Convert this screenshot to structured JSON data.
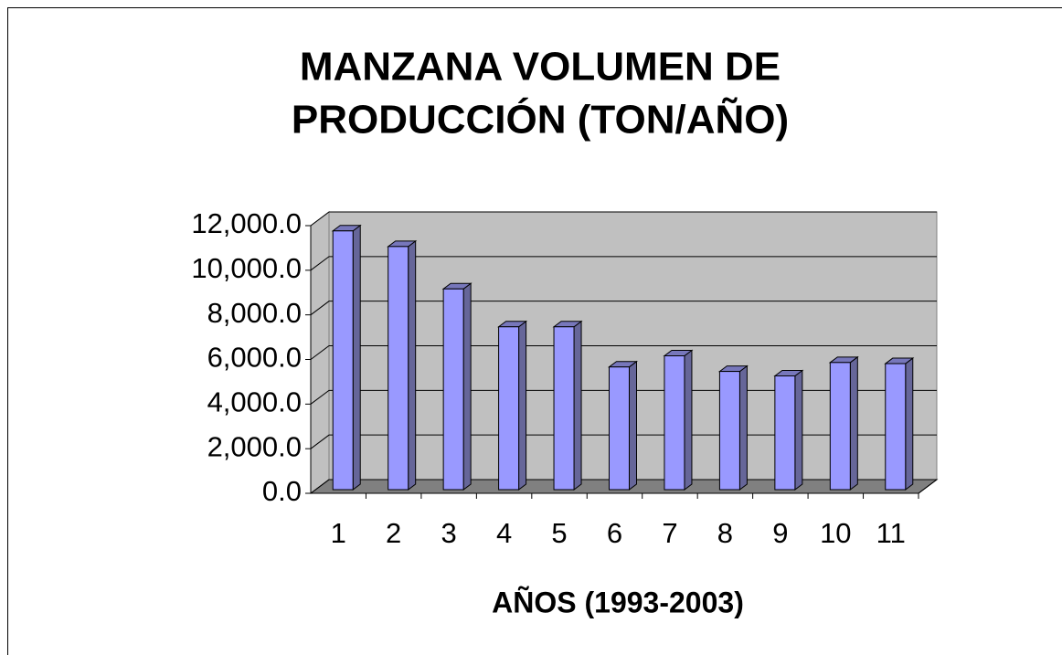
{
  "chart_data": {
    "type": "bar3d",
    "title": [
      "MANZANA VOLUMEN DE",
      "PRODUCCIÓN (TON/AÑO)"
    ],
    "x_label": "AÑOS (1993-2003)",
    "categories": [
      "1",
      "2",
      "3",
      "4",
      "5",
      "6",
      "7",
      "8",
      "9",
      "10",
      "11"
    ],
    "values": [
      11600,
      10900,
      9000,
      7300,
      7300,
      5500,
      6000,
      5300,
      5100,
      5700,
      5650
    ],
    "color": "#9999ff",
    "ylim": [
      0,
      12000
    ],
    "yticks": [
      {
        "value": 0,
        "label": "0.0"
      },
      {
        "value": 2000,
        "label": "2,000.0"
      },
      {
        "value": 4000,
        "label": "4,000.0"
      },
      {
        "value": 6000,
        "label": "6,000.0"
      },
      {
        "value": 8000,
        "label": "8,000.0"
      },
      {
        "value": 10000,
        "label": "10,000.0"
      },
      {
        "value": 12000,
        "label": "12,000.0"
      }
    ],
    "grid": true
  }
}
